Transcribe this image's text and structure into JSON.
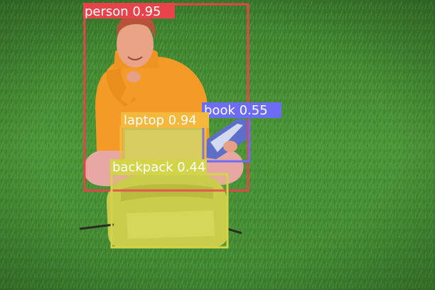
{
  "colors": {
    "grass_light": "#4f9a3a",
    "grass_dark": "#2f6e26",
    "person_box": "#e8434a",
    "book_box": "#6c6cf5",
    "laptop_box": "#f3b83c",
    "backpack_box": "#d3d44a"
  },
  "detections": [
    {
      "label_text": "person 0.95",
      "category": "person",
      "color": "#e8434a"
    },
    {
      "label_text": "book 0.55",
      "category": "book",
      "color": "#6c6cf5"
    },
    {
      "label_text": "laptop 0.94",
      "category": "laptop",
      "color": "#f3b83c"
    },
    {
      "label_text": "backpack 0.44",
      "category": "backpack",
      "color": "#d3d44a"
    }
  ]
}
